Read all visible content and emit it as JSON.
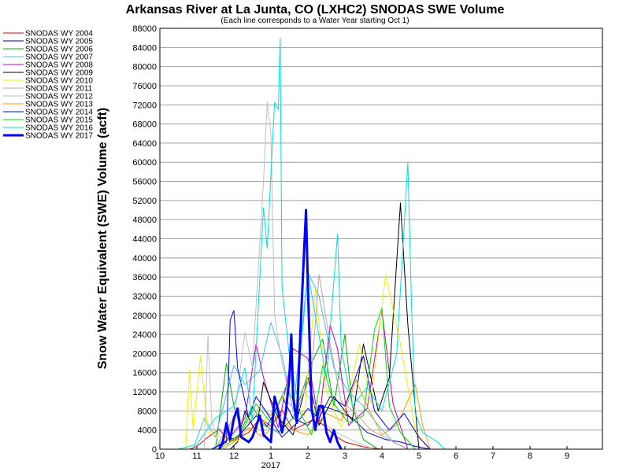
{
  "chart_data": {
    "type": "line",
    "title": "Arkansas River at La Junta, CO (LXHC2) SNODAS SWE Volume",
    "subtitle": "(Each line corresponds to a Water Year starting Oct 1)",
    "ylabel": "Snow Water Equivalent (SWE) Volume (acft)",
    "xlabel": "",
    "ylim": [
      0,
      88000
    ],
    "yticks": [
      0,
      4000,
      8000,
      12000,
      16000,
      20000,
      24000,
      28000,
      32000,
      36000,
      40000,
      44000,
      48000,
      52000,
      56000,
      60000,
      64000,
      68000,
      72000,
      76000,
      80000,
      84000,
      88000
    ],
    "x_unit": "month of water year (10 = Oct 1, 11 = Nov 1, ...)",
    "xlim_months": [
      0,
      12
    ],
    "xticks": [
      {
        "m": 0,
        "label": "10"
      },
      {
        "m": 1,
        "label": "11"
      },
      {
        "m": 2,
        "label": "12"
      },
      {
        "m": 3,
        "label": "1"
      },
      {
        "m": 4,
        "label": "2"
      },
      {
        "m": 5,
        "label": "3"
      },
      {
        "m": 6,
        "label": "4"
      },
      {
        "m": 7,
        "label": "5"
      },
      {
        "m": 8,
        "label": "6"
      },
      {
        "m": 9,
        "label": "7"
      },
      {
        "m": 10,
        "label": "8"
      },
      {
        "m": 11,
        "label": "9"
      }
    ],
    "year_label": {
      "m": 3,
      "label": "2017"
    },
    "grid": true,
    "legend_position": "left",
    "series": [
      {
        "name": "SNODAS WY 2004",
        "color": "#e00000",
        "width": 1,
        "points": [
          [
            0.8,
            0
          ],
          [
            1.0,
            600
          ],
          [
            1.3,
            2500
          ],
          [
            1.6,
            4200
          ],
          [
            1.9,
            1500
          ],
          [
            2.4,
            3500
          ],
          [
            2.7,
            6500
          ],
          [
            3.0,
            4800
          ],
          [
            3.3,
            8200
          ],
          [
            3.6,
            4000
          ],
          [
            4.1,
            6000
          ],
          [
            4.4,
            5200
          ],
          [
            4.7,
            3000
          ],
          [
            5.0,
            1500
          ],
          [
            5.5,
            500
          ],
          [
            6.0,
            0
          ]
        ]
      },
      {
        "name": "SNODAS WY 2005",
        "color": "#0000a0",
        "width": 1,
        "points": [
          [
            1.4,
            0
          ],
          [
            1.8,
            1800
          ],
          [
            2.1,
            2500
          ],
          [
            2.6,
            7000
          ],
          [
            2.9,
            4800
          ],
          [
            3.3,
            11000
          ],
          [
            3.6,
            6500
          ],
          [
            4.0,
            5000
          ],
          [
            4.4,
            9000
          ],
          [
            4.8,
            8000
          ],
          [
            5.2,
            6500
          ],
          [
            5.6,
            3500
          ],
          [
            6.1,
            2000
          ],
          [
            6.5,
            1500
          ],
          [
            6.9,
            600
          ],
          [
            7.3,
            0
          ]
        ]
      },
      {
        "name": "SNODAS WY 2006",
        "color": "#00b000",
        "width": 1,
        "points": [
          [
            1.5,
            0
          ],
          [
            1.8,
            18000
          ],
          [
            2.0,
            9000
          ],
          [
            2.2,
            4000
          ],
          [
            2.5,
            9000
          ],
          [
            2.8,
            5000
          ],
          [
            3.2,
            3500
          ],
          [
            3.6,
            6500
          ],
          [
            4.1,
            18000
          ],
          [
            4.4,
            23000
          ],
          [
            4.7,
            9000
          ],
          [
            5.0,
            24000
          ],
          [
            5.2,
            9000
          ],
          [
            5.5,
            2000
          ],
          [
            5.9,
            0
          ]
        ]
      },
      {
        "name": "SNODAS WY 2007",
        "color": "#40c0e0",
        "width": 1,
        "points": [
          [
            0.9,
            0
          ],
          [
            1.2,
            6500
          ],
          [
            1.5,
            2500
          ],
          [
            2.0,
            17500
          ],
          [
            2.3,
            13500
          ],
          [
            2.7,
            16500
          ],
          [
            3.0,
            26500
          ],
          [
            3.3,
            19500
          ],
          [
            3.6,
            8000
          ],
          [
            4.0,
            37000
          ],
          [
            4.3,
            32000
          ],
          [
            4.7,
            17000
          ],
          [
            5.1,
            12000
          ],
          [
            5.5,
            9000
          ],
          [
            5.9,
            5000
          ],
          [
            6.3,
            1500
          ],
          [
            6.7,
            0
          ]
        ]
      },
      {
        "name": "SNODAS WY 2008",
        "color": "#c000c0",
        "width": 1,
        "points": [
          [
            1.6,
            0
          ],
          [
            2.0,
            3500
          ],
          [
            2.3,
            6500
          ],
          [
            2.6,
            22000
          ],
          [
            2.8,
            15000
          ],
          [
            3.2,
            4500
          ],
          [
            3.6,
            21000
          ],
          [
            4.0,
            19000
          ],
          [
            4.3,
            5500
          ],
          [
            4.6,
            26000
          ],
          [
            4.8,
            21000
          ],
          [
            5.1,
            5000
          ],
          [
            5.6,
            8500
          ],
          [
            6.0,
            29000
          ],
          [
            6.3,
            9500
          ],
          [
            6.7,
            0
          ]
        ]
      },
      {
        "name": "SNODAS WY 2009",
        "color": "#000000",
        "width": 1,
        "points": [
          [
            1.9,
            0
          ],
          [
            2.1,
            1500
          ],
          [
            2.3,
            8000
          ],
          [
            2.6,
            3500
          ],
          [
            2.8,
            14000
          ],
          [
            3.2,
            6500
          ],
          [
            3.6,
            3000
          ],
          [
            4.0,
            15000
          ],
          [
            4.3,
            5000
          ],
          [
            4.7,
            11000
          ],
          [
            5.2,
            6000
          ],
          [
            5.5,
            22000
          ],
          [
            5.9,
            8000
          ],
          [
            6.2,
            15000
          ],
          [
            6.5,
            51500
          ],
          [
            6.7,
            26000
          ],
          [
            7.0,
            0
          ]
        ]
      },
      {
        "name": "SNODAS WY 2010",
        "color": "#f0f000",
        "width": 1,
        "points": [
          [
            0.7,
            0
          ],
          [
            0.8,
            16500
          ],
          [
            0.9,
            4000
          ],
          [
            1.1,
            19500
          ],
          [
            1.3,
            3500
          ],
          [
            2.0,
            1500
          ],
          [
            2.5,
            3000
          ],
          [
            3.0,
            7500
          ],
          [
            3.5,
            12500
          ],
          [
            3.9,
            7000
          ],
          [
            4.2,
            33500
          ],
          [
            4.5,
            12000
          ],
          [
            4.9,
            4500
          ],
          [
            5.4,
            22000
          ],
          [
            5.7,
            9500
          ],
          [
            6.1,
            36500
          ],
          [
            6.5,
            22000
          ],
          [
            6.9,
            4000
          ],
          [
            7.3,
            0
          ]
        ]
      },
      {
        "name": "SNODAS WY 2011",
        "color": "#c0a0a0",
        "width": 1,
        "points": [
          [
            1.5,
            0
          ],
          [
            1.7,
            3000
          ],
          [
            2.0,
            6500
          ],
          [
            2.4,
            5500
          ],
          [
            2.7,
            9000
          ],
          [
            3.0,
            7000
          ],
          [
            3.3,
            11000
          ],
          [
            3.7,
            8000
          ],
          [
            4.1,
            16000
          ],
          [
            4.3,
            36500
          ],
          [
            4.6,
            22000
          ],
          [
            4.9,
            10000
          ],
          [
            5.3,
            7500
          ],
          [
            5.7,
            4000
          ],
          [
            6.2,
            2000
          ],
          [
            6.7,
            0
          ]
        ]
      },
      {
        "name": "SNODAS WY 2012",
        "color": "#c0c0c0",
        "width": 1,
        "points": [
          [
            1.2,
            0
          ],
          [
            1.3,
            24000
          ],
          [
            1.4,
            6000
          ],
          [
            1.6,
            1000
          ],
          [
            2.0,
            6000
          ],
          [
            2.3,
            24500
          ],
          [
            2.5,
            17000
          ],
          [
            2.8,
            56000
          ],
          [
            2.9,
            72500
          ],
          [
            3.0,
            66000
          ],
          [
            3.1,
            28000
          ],
          [
            3.3,
            18000
          ],
          [
            3.6,
            8000
          ],
          [
            3.9,
            12000
          ],
          [
            4.2,
            9000
          ],
          [
            4.5,
            5000
          ],
          [
            4.9,
            3000
          ],
          [
            5.3,
            1500
          ],
          [
            5.8,
            0
          ]
        ]
      },
      {
        "name": "SNODAS WY 2013",
        "color": "#ff9900",
        "width": 1,
        "points": [
          [
            1.7,
            0
          ],
          [
            2.0,
            1500
          ],
          [
            2.4,
            4500
          ],
          [
            2.8,
            2500
          ],
          [
            3.2,
            6500
          ],
          [
            3.6,
            4000
          ],
          [
            4.0,
            3000
          ],
          [
            4.5,
            7500
          ],
          [
            4.9,
            6000
          ],
          [
            5.3,
            14500
          ],
          [
            5.6,
            9000
          ],
          [
            6.0,
            3000
          ],
          [
            6.4,
            5000
          ],
          [
            6.9,
            13500
          ],
          [
            7.1,
            5000
          ],
          [
            7.3,
            0
          ]
        ]
      },
      {
        "name": "SNODAS WY 2014",
        "color": "#0000ff",
        "width": 1,
        "points": [
          [
            1.4,
            0
          ],
          [
            1.8,
            1500
          ],
          [
            1.9,
            27000
          ],
          [
            2.0,
            29000
          ],
          [
            2.1,
            17000
          ],
          [
            2.4,
            6500
          ],
          [
            2.6,
            11000
          ],
          [
            2.9,
            7500
          ],
          [
            3.3,
            2500
          ],
          [
            3.7,
            5500
          ],
          [
            4.0,
            8500
          ],
          [
            4.3,
            6500
          ],
          [
            4.6,
            11000
          ],
          [
            5.0,
            9000
          ],
          [
            5.5,
            19500
          ],
          [
            5.8,
            8000
          ],
          [
            6.2,
            4000
          ],
          [
            6.6,
            7500
          ],
          [
            7.0,
            2500
          ],
          [
            7.3,
            0
          ]
        ]
      },
      {
        "name": "SNODAS WY 2015",
        "color": "#00e000",
        "width": 1,
        "points": [
          [
            1.6,
            0
          ],
          [
            1.9,
            1500
          ],
          [
            2.2,
            3500
          ],
          [
            2.6,
            9500
          ],
          [
            3.0,
            5500
          ],
          [
            3.4,
            13000
          ],
          [
            3.8,
            7500
          ],
          [
            4.1,
            3000
          ],
          [
            4.4,
            17500
          ],
          [
            4.7,
            9500
          ],
          [
            5.1,
            5500
          ],
          [
            5.5,
            7000
          ],
          [
            5.8,
            25000
          ],
          [
            6.0,
            29500
          ],
          [
            6.2,
            9000
          ],
          [
            6.5,
            3500
          ],
          [
            6.9,
            0
          ]
        ]
      },
      {
        "name": "SNODAS WY 2016",
        "color": "#00e0e0",
        "width": 1,
        "points": [
          [
            0.5,
            0
          ],
          [
            1.0,
            1000
          ],
          [
            1.5,
            6500
          ],
          [
            2.0,
            9000
          ],
          [
            2.3,
            17000
          ],
          [
            2.5,
            6000
          ],
          [
            2.8,
            50500
          ],
          [
            2.9,
            42000
          ],
          [
            3.1,
            72500
          ],
          [
            3.2,
            71000
          ],
          [
            3.25,
            86000
          ],
          [
            3.3,
            34000
          ],
          [
            3.5,
            19500
          ],
          [
            3.7,
            11500
          ],
          [
            4.0,
            37000
          ],
          [
            4.2,
            28000
          ],
          [
            4.5,
            15000
          ],
          [
            4.8,
            45000
          ],
          [
            4.9,
            21000
          ],
          [
            5.2,
            9000
          ],
          [
            5.6,
            13000
          ],
          [
            6.0,
            8000
          ],
          [
            6.4,
            20000
          ],
          [
            6.7,
            60000
          ],
          [
            6.8,
            30000
          ],
          [
            6.9,
            7500
          ],
          [
            7.1,
            3500
          ],
          [
            7.5,
            1500
          ],
          [
            7.7,
            0
          ]
        ]
      },
      {
        "name": "SNODAS WY 2017",
        "color": "#0000ff",
        "width": 3,
        "points": [
          [
            1.6,
            0
          ],
          [
            1.7,
            1500
          ],
          [
            1.8,
            5500
          ],
          [
            1.9,
            2000
          ],
          [
            2.0,
            6500
          ],
          [
            2.1,
            8500
          ],
          [
            2.2,
            2500
          ],
          [
            2.4,
            1500
          ],
          [
            2.5,
            2500
          ],
          [
            2.7,
            7000
          ],
          [
            2.8,
            3000
          ],
          [
            3.0,
            1500
          ],
          [
            3.1,
            11000
          ],
          [
            3.2,
            8000
          ],
          [
            3.3,
            3500
          ],
          [
            3.4,
            7500
          ],
          [
            3.5,
            15000
          ],
          [
            3.55,
            24000
          ],
          [
            3.6,
            11000
          ],
          [
            3.7,
            5500
          ],
          [
            3.8,
            25000
          ],
          [
            3.9,
            42000
          ],
          [
            3.95,
            50000
          ],
          [
            4.0,
            34000
          ],
          [
            4.1,
            8500
          ],
          [
            4.2,
            4000
          ],
          [
            4.3,
            9000
          ],
          [
            4.4,
            9000
          ],
          [
            4.5,
            3500
          ],
          [
            4.6,
            1500
          ],
          [
            4.7,
            4000
          ],
          [
            4.8,
            1500
          ],
          [
            4.9,
            0
          ]
        ]
      }
    ]
  }
}
